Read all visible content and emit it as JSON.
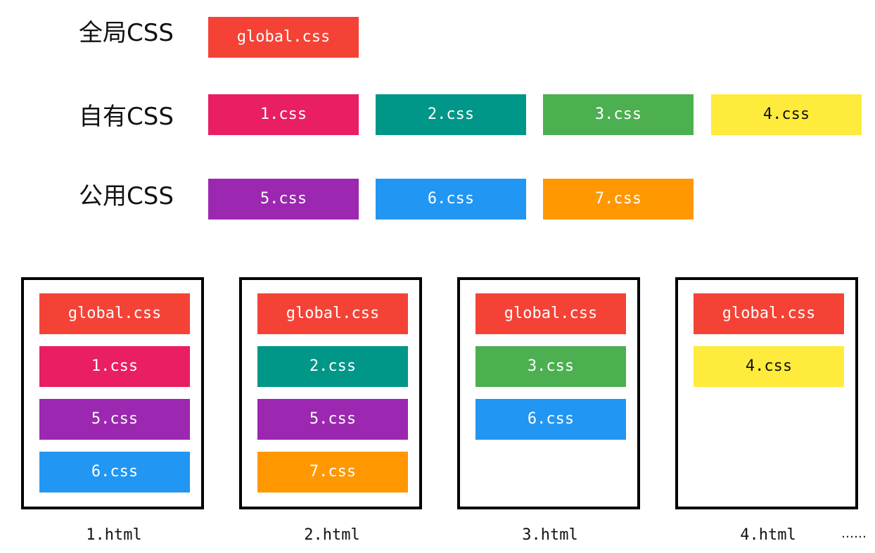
{
  "colors": {
    "global": "#f44336",
    "css1": "#e91e63",
    "css2": "#009688",
    "css3": "#4caf50",
    "css4": "#ffeb3b",
    "css5": "#9c27b0",
    "css6": "#2196f3",
    "css7": "#ff9800"
  },
  "legend": {
    "global_label": "全局CSS",
    "own_label": "自有CSS",
    "shared_label": "公用CSS",
    "global_files": [
      "global.css"
    ],
    "own_files": [
      "1.css",
      "2.css",
      "3.css",
      "4.css"
    ],
    "shared_files": [
      "5.css",
      "6.css",
      "7.css"
    ]
  },
  "pages": [
    {
      "name": "1.html",
      "files": [
        "global.css",
        "1.css",
        "5.css",
        "6.css"
      ]
    },
    {
      "name": "2.html",
      "files": [
        "global.css",
        "2.css",
        "5.css",
        "7.css"
      ]
    },
    {
      "name": "3.html",
      "files": [
        "global.css",
        "3.css",
        "6.css"
      ]
    },
    {
      "name": "4.html",
      "files": [
        "global.css",
        "4.css"
      ]
    }
  ],
  "ellipsis": "……"
}
